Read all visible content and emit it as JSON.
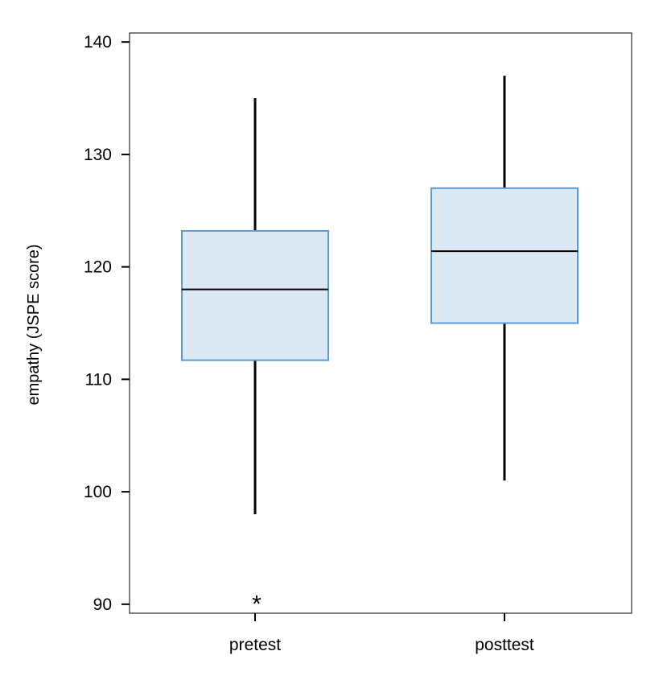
{
  "chart_data": {
    "type": "boxplot",
    "title": "",
    "xlabel": "",
    "ylabel": "empathy (JSPE score)",
    "ylim": [
      89.2,
      140.8
    ],
    "yticks": [
      90,
      100,
      110,
      120,
      130,
      140
    ],
    "grid": false,
    "legend": "none",
    "categories": [
      "pretest",
      "posttest"
    ],
    "boxes": [
      {
        "category": "pretest",
        "whisker_low": 98,
        "q1": 111.7,
        "median": 118,
        "q3": 123.2,
        "whisker_high": 135,
        "outliers": [
          90.6
        ]
      },
      {
        "category": "posttest",
        "whisker_low": 101,
        "q1": 115,
        "median": 121.4,
        "q3": 127,
        "whisker_high": 137,
        "outliers": []
      }
    ],
    "outlier_marker": "*",
    "colors": {
      "box_fill": "#dde8f5",
      "box_stroke": "#5b9bd5",
      "whisker": "#000000",
      "axis": "#000000"
    }
  }
}
